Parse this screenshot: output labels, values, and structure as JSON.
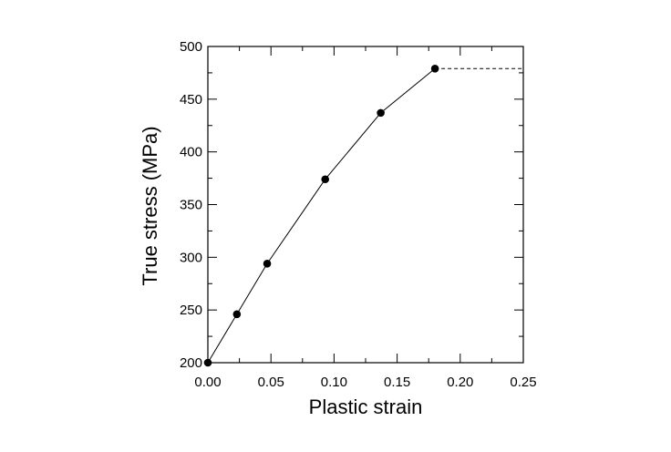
{
  "chart_data": {
    "type": "line",
    "title": "",
    "xlabel": "Plastic strain",
    "ylabel": "True stress (MPa)",
    "xlim": [
      0.0,
      0.25
    ],
    "ylim": [
      200,
      500
    ],
    "x_ticks": [
      "0.00",
      "0.05",
      "0.10",
      "0.15",
      "0.20",
      "0.25"
    ],
    "y_ticks": [
      "200",
      "250",
      "300",
      "350",
      "400",
      "450",
      "500"
    ],
    "grid": false,
    "legend": "none",
    "series": [
      {
        "style": "solid line with filled circle markers",
        "x": [
          0.0,
          0.023,
          0.047,
          0.093,
          0.137,
          0.18
        ],
        "y": [
          200,
          246,
          294,
          374,
          437,
          479
        ]
      },
      {
        "style": "dashed line",
        "x": [
          0.18,
          0.25
        ],
        "y": [
          479,
          479
        ]
      }
    ],
    "colors": {
      "line": "#000000",
      "marker": "#000000",
      "frame": "#000000"
    }
  }
}
